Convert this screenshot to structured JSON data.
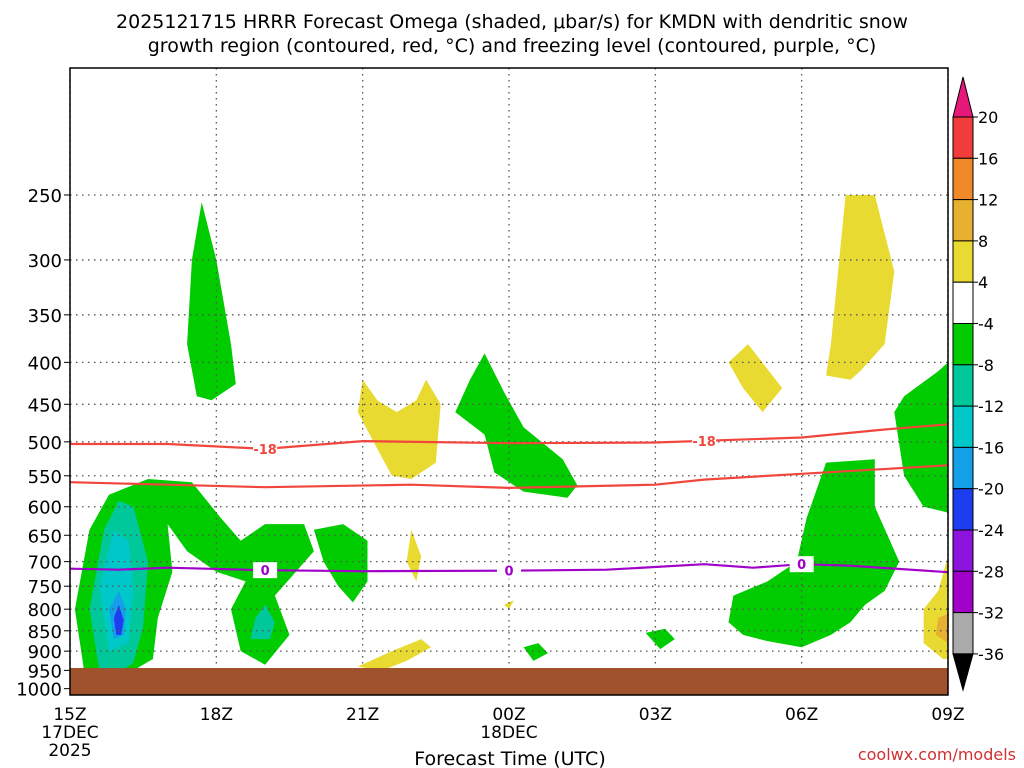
{
  "chart_data": {
    "type": "heatmap",
    "title_line1": "2025121715 HRRR Forecast Omega (shaded, μbar/s) for KMDN with dendritic snow",
    "title_line2": "growth region (contoured, red, °C) and freezing level (contoured, purple, °C)",
    "xlabel": "Forecast Time (UTC)",
    "ylabel": "",
    "watermark": "coolwx.com/models",
    "x_range_hours": [
      0,
      18
    ],
    "x_ticks": [
      {
        "hour": 0,
        "label": "15Z",
        "sub1": "17DEC",
        "sub2": "2025"
      },
      {
        "hour": 3,
        "label": "18Z"
      },
      {
        "hour": 6,
        "label": "21Z"
      },
      {
        "hour": 9,
        "label": "00Z",
        "sub1": "18DEC"
      },
      {
        "hour": 12,
        "label": "03Z"
      },
      {
        "hour": 15,
        "label": "06Z"
      },
      {
        "hour": 18,
        "label": "09Z"
      }
    ],
    "y_range_hpa": [
      1018,
      175
    ],
    "y_ticks": [
      250,
      300,
      350,
      400,
      450,
      500,
      550,
      600,
      650,
      700,
      750,
      800,
      850,
      900,
      950,
      1000
    ],
    "colorbar": {
      "labels": [
        "20",
        "16",
        "12",
        "8",
        "4",
        "-4",
        "-8",
        "-12",
        "-16",
        "-20",
        "-24",
        "-28",
        "-32",
        "-36"
      ],
      "bins": [
        {
          "lo": 16,
          "hi": 20,
          "color": "#f23c3c"
        },
        {
          "lo": 12,
          "hi": 16,
          "color": "#f08a28"
        },
        {
          "lo": 8,
          "hi": 12,
          "color": "#e8b030"
        },
        {
          "lo": 4,
          "hi": 8,
          "color": "#e8da30"
        },
        {
          "lo": -4,
          "hi": 4,
          "color": "#ffffff"
        },
        {
          "lo": -8,
          "hi": -4,
          "color": "#00cc00"
        },
        {
          "lo": -12,
          "hi": -8,
          "color": "#00c89a"
        },
        {
          "lo": -16,
          "hi": -12,
          "color": "#00c8c8"
        },
        {
          "lo": -20,
          "hi": -16,
          "color": "#14a0e8"
        },
        {
          "lo": -24,
          "hi": -20,
          "color": "#1e3cf0"
        },
        {
          "lo": -28,
          "hi": -24,
          "color": "#8c14dc"
        },
        {
          "lo": -32,
          "hi": -28,
          "color": "#a000c8"
        },
        {
          "lo": -36,
          "hi": -32,
          "color": "#aaaaaa"
        }
      ],
      "top_triangle_color": "#e6197a",
      "bottom_triangle_color": "#000000"
    },
    "contours": [
      {
        "name": "dgz-upper-18C",
        "label": "-18",
        "color": "#f0463c",
        "points": [
          [
            0,
            503
          ],
          [
            2,
            503
          ],
          [
            4,
            510
          ],
          [
            6,
            499
          ],
          [
            9,
            502
          ],
          [
            12,
            501
          ],
          [
            15,
            494
          ],
          [
            16.7,
            483
          ],
          [
            18,
            476
          ]
        ],
        "label_hours": [
          4,
          13
        ]
      },
      {
        "name": "dgz-lower-12C",
        "label": "",
        "color": "#f0463c",
        "points": [
          [
            0,
            560
          ],
          [
            2,
            564
          ],
          [
            4,
            568
          ],
          [
            7,
            564
          ],
          [
            9,
            569
          ],
          [
            12,
            564
          ],
          [
            13,
            556
          ],
          [
            15,
            547
          ],
          [
            18,
            534
          ]
        ],
        "label_hours": []
      },
      {
        "name": "freezing-level-0C",
        "label": "0",
        "color": "#a000c8",
        "points": [
          [
            0,
            714
          ],
          [
            1,
            716
          ],
          [
            2,
            712
          ],
          [
            4,
            717
          ],
          [
            6,
            719
          ],
          [
            9,
            718
          ],
          [
            11,
            716
          ],
          [
            13,
            705
          ],
          [
            14,
            712
          ],
          [
            15,
            705
          ],
          [
            16,
            708
          ],
          [
            18,
            721
          ]
        ],
        "label_hours": [
          4,
          9,
          15
        ]
      }
    ],
    "terrain_color": "#a0522d",
    "shaded_regions": [
      {
        "value": -6,
        "points": [
          [
            0.3,
            960
          ],
          [
            0.1,
            800
          ],
          [
            0.4,
            640
          ],
          [
            0.8,
            580
          ],
          [
            1.6,
            555
          ],
          [
            2.5,
            560
          ],
          [
            3.1,
            620
          ],
          [
            3.5,
            660
          ],
          [
            4.0,
            630
          ],
          [
            4.8,
            630
          ],
          [
            5.0,
            680
          ],
          [
            4.2,
            770
          ],
          [
            4.5,
            860
          ],
          [
            4.0,
            935
          ],
          [
            3.5,
            900
          ],
          [
            3.3,
            800
          ],
          [
            3.6,
            740
          ],
          [
            3.0,
            720
          ],
          [
            2.4,
            680
          ],
          [
            2.0,
            630
          ],
          [
            2.1,
            720
          ],
          [
            1.8,
            820
          ],
          [
            1.7,
            920
          ],
          [
            1.3,
            950
          ],
          [
            0.8,
            965
          ]
        ]
      },
      {
        "value": -10,
        "points": [
          [
            0.6,
            950
          ],
          [
            0.4,
            800
          ],
          [
            0.7,
            640
          ],
          [
            1.0,
            590
          ],
          [
            1.3,
            600
          ],
          [
            1.6,
            700
          ],
          [
            1.5,
            840
          ],
          [
            1.3,
            930
          ],
          [
            1.0,
            955
          ]
        ]
      },
      {
        "value": -14,
        "points": [
          [
            0.8,
            900
          ],
          [
            0.6,
            750
          ],
          [
            0.9,
            640
          ],
          [
            1.2,
            660
          ],
          [
            1.3,
            760
          ],
          [
            1.2,
            880
          ]
        ]
      },
      {
        "value": -18,
        "points": [
          [
            0.9,
            870
          ],
          [
            0.8,
            800
          ],
          [
            1.0,
            760
          ],
          [
            1.15,
            800
          ],
          [
            1.1,
            860
          ]
        ]
      },
      {
        "value": -22,
        "points": [
          [
            0.95,
            860
          ],
          [
            0.9,
            820
          ],
          [
            1.0,
            790
          ],
          [
            1.1,
            825
          ],
          [
            1.05,
            860
          ]
        ]
      },
      {
        "value": -10,
        "points": [
          [
            3.7,
            870
          ],
          [
            3.8,
            820
          ],
          [
            4.0,
            790
          ],
          [
            4.2,
            830
          ],
          [
            4.1,
            870
          ]
        ]
      },
      {
        "value": -6,
        "points": [
          [
            5.0,
            640
          ],
          [
            5.6,
            630
          ],
          [
            6.1,
            660
          ],
          [
            6.1,
            740
          ],
          [
            5.8,
            785
          ],
          [
            5.5,
            750
          ],
          [
            5.2,
            700
          ]
        ]
      },
      {
        "value": -6,
        "points": [
          [
            2.6,
            440
          ],
          [
            2.4,
            380
          ],
          [
            2.5,
            300
          ],
          [
            2.7,
            255
          ],
          [
            3.0,
            300
          ],
          [
            3.3,
            380
          ],
          [
            3.4,
            425
          ],
          [
            2.9,
            445
          ]
        ]
      },
      {
        "value": -6,
        "points": [
          [
            8.5,
            490
          ],
          [
            7.9,
            460
          ],
          [
            8.2,
            420
          ],
          [
            8.5,
            390
          ],
          [
            8.9,
            435
          ],
          [
            9.3,
            480
          ],
          [
            10.1,
            525
          ],
          [
            10.4,
            565
          ],
          [
            10.2,
            585
          ],
          [
            9.3,
            575
          ],
          [
            8.7,
            545
          ]
        ]
      },
      {
        "value": -6,
        "points": [
          [
            9.3,
            890
          ],
          [
            9.6,
            880
          ],
          [
            9.8,
            905
          ],
          [
            9.5,
            925
          ]
        ]
      },
      {
        "value": -6,
        "points": [
          [
            11.8,
            855
          ],
          [
            12.2,
            845
          ],
          [
            12.4,
            870
          ],
          [
            12.1,
            895
          ]
        ]
      },
      {
        "value": -6,
        "points": [
          [
            15.0,
            890
          ],
          [
            14.3,
            875
          ],
          [
            13.8,
            860
          ],
          [
            13.5,
            830
          ],
          [
            13.6,
            770
          ],
          [
            14.3,
            740
          ],
          [
            14.9,
            700
          ],
          [
            15.1,
            620
          ],
          [
            15.5,
            530
          ],
          [
            16.5,
            525
          ],
          [
            16.5,
            600
          ],
          [
            17.0,
            700
          ],
          [
            16.7,
            760
          ],
          [
            16.3,
            790
          ],
          [
            16.0,
            830
          ],
          [
            15.6,
            860
          ]
        ]
      },
      {
        "value": -6,
        "points": [
          [
            17.5,
            600
          ],
          [
            17.1,
            550
          ],
          [
            16.9,
            460
          ],
          [
            17.1,
            440
          ],
          [
            17.8,
            410
          ],
          [
            18.0,
            400
          ],
          [
            18.0,
            610
          ]
        ]
      },
      {
        "value": 6,
        "points": [
          [
            6.0,
            420
          ],
          [
            5.9,
            460
          ],
          [
            6.3,
            510
          ],
          [
            6.6,
            550
          ],
          [
            7.0,
            555
          ],
          [
            7.5,
            530
          ],
          [
            7.6,
            450
          ],
          [
            7.3,
            420
          ],
          [
            7.1,
            445
          ],
          [
            6.7,
            460
          ],
          [
            6.3,
            445
          ]
        ]
      },
      {
        "value": 6,
        "points": [
          [
            7.0,
            640
          ],
          [
            6.9,
            700
          ],
          [
            7.1,
            740
          ],
          [
            7.2,
            690
          ]
        ]
      },
      {
        "value": 6,
        "points": [
          [
            9.0,
            800
          ],
          [
            8.9,
            790
          ],
          [
            9.1,
            780
          ]
        ]
      },
      {
        "value": 6,
        "points": [
          [
            5.9,
            940
          ],
          [
            6.6,
            900
          ],
          [
            7.2,
            870
          ],
          [
            7.4,
            890
          ],
          [
            6.9,
            925
          ],
          [
            6.4,
            950
          ]
        ]
      },
      {
        "value": 6,
        "points": [
          [
            13.8,
            430
          ],
          [
            13.5,
            400
          ],
          [
            13.9,
            380
          ],
          [
            14.6,
            430
          ],
          [
            14.2,
            460
          ]
        ]
      },
      {
        "value": 6,
        "points": [
          [
            16.0,
            420
          ],
          [
            15.5,
            415
          ],
          [
            15.6,
            380
          ],
          [
            15.9,
            250
          ],
          [
            16.5,
            250
          ],
          [
            16.9,
            310
          ],
          [
            16.7,
            380
          ],
          [
            16.2,
            410
          ]
        ]
      },
      {
        "value": 6,
        "points": [
          [
            18.0,
            690
          ],
          [
            17.8,
            760
          ],
          [
            17.5,
            800
          ],
          [
            17.5,
            880
          ],
          [
            17.9,
            920
          ],
          [
            18.0,
            920
          ]
        ]
      },
      {
        "value": 10,
        "points": [
          [
            17.75,
            860
          ],
          [
            17.8,
            820
          ],
          [
            18.0,
            810
          ],
          [
            18.0,
            880
          ]
        ]
      }
    ]
  }
}
